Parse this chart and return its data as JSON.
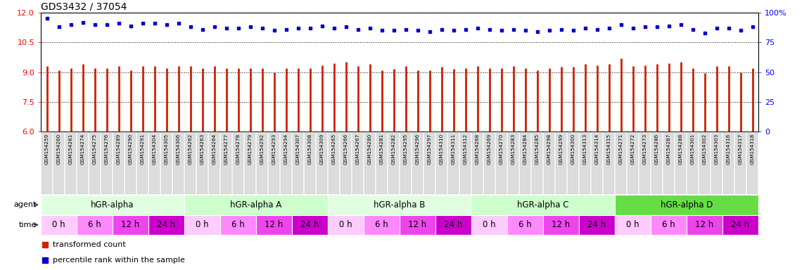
{
  "title": "GDS3432 / 37054",
  "sample_ids": [
    "GSM154259",
    "GSM154260",
    "GSM154261",
    "GSM154274",
    "GSM154275",
    "GSM154276",
    "GSM154289",
    "GSM154290",
    "GSM154291",
    "GSM154304",
    "GSM154305",
    "GSM154306",
    "GSM154262",
    "GSM154263",
    "GSM154264",
    "GSM154277",
    "GSM154278",
    "GSM154279",
    "GSM154292",
    "GSM154293",
    "GSM154294",
    "GSM154307",
    "GSM154308",
    "GSM154309",
    "GSM154265",
    "GSM154266",
    "GSM154267",
    "GSM154280",
    "GSM154281",
    "GSM154282",
    "GSM154295",
    "GSM154296",
    "GSM154297",
    "GSM154310",
    "GSM154311",
    "GSM154312",
    "GSM154268",
    "GSM154269",
    "GSM154270",
    "GSM154283",
    "GSM154284",
    "GSM154285",
    "GSM154298",
    "GSM154299",
    "GSM154300",
    "GSM154313",
    "GSM154314",
    "GSM154315",
    "GSM154271",
    "GSM154272",
    "GSM154273",
    "GSM154286",
    "GSM154287",
    "GSM154288",
    "GSM154301",
    "GSM154302",
    "GSM154303",
    "GSM154316",
    "GSM154317",
    "GSM154318"
  ],
  "red_values": [
    9.3,
    9.1,
    9.2,
    9.4,
    9.2,
    9.2,
    9.3,
    9.1,
    9.3,
    9.3,
    9.2,
    9.3,
    9.3,
    9.2,
    9.3,
    9.2,
    9.2,
    9.2,
    9.2,
    9.0,
    9.2,
    9.2,
    9.2,
    9.35,
    9.45,
    9.5,
    9.3,
    9.4,
    9.1,
    9.15,
    9.3,
    9.1,
    9.1,
    9.25,
    9.15,
    9.2,
    9.3,
    9.2,
    9.2,
    9.3,
    9.2,
    9.1,
    9.2,
    9.25,
    9.25,
    9.4,
    9.35,
    9.4,
    9.7,
    9.3,
    9.35,
    9.4,
    9.45,
    9.5,
    9.2,
    8.95,
    9.3,
    9.3,
    9.0,
    9.2
  ],
  "blue_values": [
    95,
    88,
    90,
    92,
    90,
    90,
    91,
    89,
    91,
    91,
    90,
    91,
    88,
    86,
    88,
    87,
    87,
    88,
    87,
    85,
    86,
    87,
    87,
    89,
    87,
    88,
    86,
    87,
    85,
    85,
    86,
    85,
    84,
    86,
    85,
    86,
    87,
    86,
    85,
    86,
    85,
    84,
    85,
    86,
    85,
    87,
    86,
    87,
    90,
    87,
    88,
    88,
    89,
    90,
    86,
    83,
    87,
    87,
    85,
    88
  ],
  "agents": [
    "hGR-alpha",
    "hGR-alpha A",
    "hGR-alpha B",
    "hGR-alpha C",
    "hGR-alpha D"
  ],
  "agent_group_size": 12,
  "agent_colors": [
    "#e0ffe0",
    "#ccffcc",
    "#e0ffe0",
    "#ccffcc",
    "#66dd44"
  ],
  "time_labels": [
    "0 h",
    "6 h",
    "12 h",
    "24 h"
  ],
  "time_colors": [
    "#ffccff",
    "#ff88ff",
    "#ee44ee",
    "#cc00cc"
  ],
  "ylim_left": [
    6,
    12
  ],
  "ylim_right": [
    0,
    100
  ],
  "yticks_left": [
    6,
    7.5,
    9,
    10.5,
    12
  ],
  "yticks_right": [
    0,
    25,
    50,
    75,
    100
  ],
  "bar_color": "#cc2200",
  "dot_color": "#0000cc",
  "legend_red": "transformed count",
  "legend_blue": "percentile rank within the sample",
  "title_fontsize": 10,
  "tick_fontsize": 8,
  "label_fontsize": 8
}
